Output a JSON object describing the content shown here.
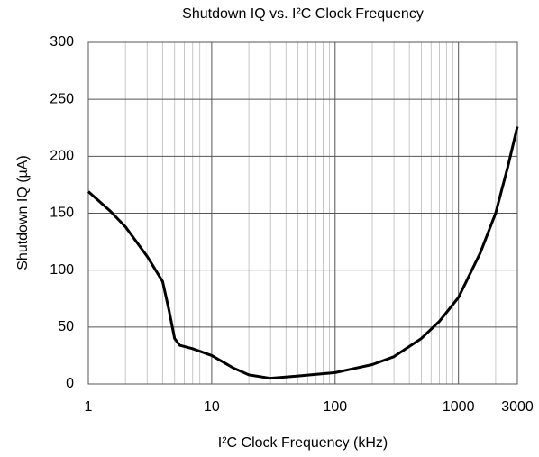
{
  "chart_data": {
    "type": "line",
    "title": "Shutdown IQ vs. I²C Clock Frequency",
    "x_label": "I²C Clock Frequency (kHz)",
    "y_label": "Shutdown IQ (µA)",
    "x_scale": "log",
    "grid": true,
    "minor_grid": true,
    "xlim": [
      1,
      3000
    ],
    "xticks": [
      1,
      10,
      100,
      1000,
      3000
    ],
    "ylim": [
      0,
      300
    ],
    "yticks": [
      0,
      50,
      100,
      150,
      200,
      250,
      300
    ],
    "series": [
      {
        "name": "Shutdown IQ",
        "color": "#000000",
        "x": [
          1,
          1.5,
          2,
          3,
          4,
          4.5,
          5,
          5.5,
          7,
          10,
          15,
          20,
          30,
          50,
          100,
          200,
          300,
          500,
          700,
          1000,
          1500,
          2000,
          2500,
          3000
        ],
        "values": [
          169,
          152,
          138,
          112,
          90,
          65,
          40,
          34,
          31,
          25,
          14,
          8,
          5,
          7,
          10,
          17,
          24,
          40,
          55,
          76,
          115,
          150,
          190,
          226
        ]
      }
    ]
  }
}
